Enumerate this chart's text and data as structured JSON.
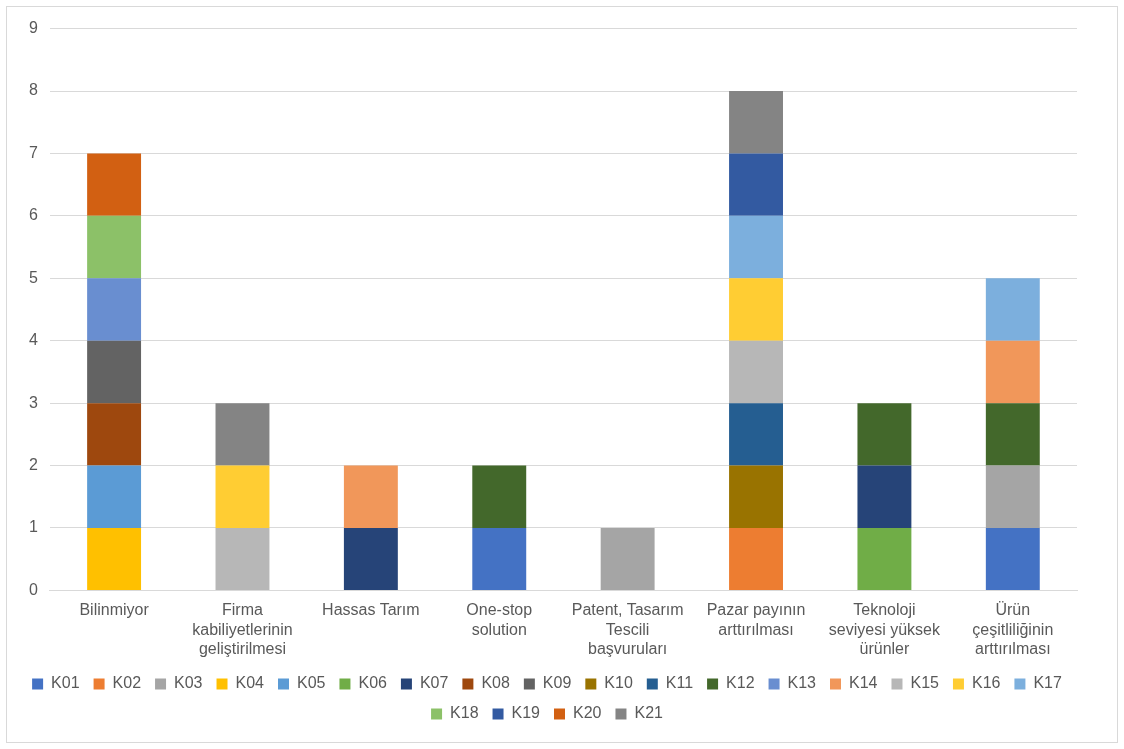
{
  "chart_data": {
    "type": "bar",
    "stacked": true,
    "categories": [
      "Bilinmiyor",
      "Firma kabiliyetlerinin geliştirilmesi",
      "Hassas Tarım",
      "One-stop solution",
      "Patent, Tasarım Tescili başvuruları",
      "Pazar payının arttırılması",
      "Teknoloji seviyesi yüksek ürünler",
      "Ürün çeşitliliğinin arttırılması"
    ],
    "ylim": [
      0,
      9
    ],
    "yticks": [
      0,
      1,
      2,
      3,
      4,
      5,
      6,
      7,
      8,
      9
    ],
    "grid": "y",
    "legend": "bottom",
    "series": [
      {
        "name": "K01",
        "color": "#4472c4",
        "values": [
          null,
          null,
          null,
          1,
          null,
          null,
          null,
          1
        ]
      },
      {
        "name": "K02",
        "color": "#ed7d31",
        "values": [
          null,
          null,
          null,
          null,
          null,
          1,
          null,
          null
        ]
      },
      {
        "name": "K03",
        "color": "#a5a5a5",
        "values": [
          null,
          null,
          null,
          null,
          1,
          null,
          null,
          1
        ]
      },
      {
        "name": "K04",
        "color": "#ffc000",
        "values": [
          1,
          null,
          null,
          null,
          null,
          null,
          null,
          null
        ]
      },
      {
        "name": "K05",
        "color": "#5b9bd5",
        "values": [
          1,
          null,
          null,
          null,
          null,
          null,
          null,
          null
        ]
      },
      {
        "name": "K06",
        "color": "#70ad47",
        "values": [
          null,
          null,
          null,
          null,
          null,
          null,
          1,
          null
        ]
      },
      {
        "name": "K07",
        "color": "#264478",
        "values": [
          null,
          null,
          1,
          null,
          null,
          null,
          1,
          null
        ]
      },
      {
        "name": "K08",
        "color": "#9e480e",
        "values": [
          1,
          null,
          null,
          null,
          null,
          null,
          null,
          null
        ]
      },
      {
        "name": "K09",
        "color": "#636363",
        "values": [
          1,
          null,
          null,
          null,
          null,
          null,
          null,
          null
        ]
      },
      {
        "name": "K10",
        "color": "#997300",
        "values": [
          null,
          null,
          null,
          null,
          null,
          1,
          null,
          null
        ]
      },
      {
        "name": "K11",
        "color": "#255e91",
        "values": [
          null,
          null,
          null,
          null,
          null,
          1,
          null,
          null
        ]
      },
      {
        "name": "K12",
        "color": "#43682b",
        "values": [
          null,
          null,
          null,
          1,
          null,
          null,
          1,
          1
        ]
      },
      {
        "name": "K13",
        "color": "#698ed0",
        "values": [
          1,
          null,
          null,
          null,
          null,
          null,
          null,
          null
        ]
      },
      {
        "name": "K14",
        "color": "#f1975a",
        "values": [
          null,
          null,
          1,
          null,
          null,
          null,
          null,
          1
        ]
      },
      {
        "name": "K15",
        "color": "#b7b7b7",
        "values": [
          null,
          1,
          null,
          null,
          null,
          1,
          null,
          null
        ]
      },
      {
        "name": "K16",
        "color": "#ffcd33",
        "values": [
          null,
          1,
          null,
          null,
          null,
          1,
          null,
          null
        ]
      },
      {
        "name": "K17",
        "color": "#7cafdd",
        "values": [
          null,
          null,
          null,
          null,
          null,
          1,
          null,
          1
        ]
      },
      {
        "name": "K18",
        "color": "#8cc168",
        "values": [
          1,
          null,
          null,
          null,
          null,
          null,
          null,
          null
        ]
      },
      {
        "name": "K19",
        "color": "#335aa1",
        "values": [
          null,
          null,
          null,
          null,
          null,
          1,
          null,
          null
        ]
      },
      {
        "name": "K20",
        "color": "#d26012",
        "values": [
          1,
          null,
          null,
          null,
          null,
          null,
          null,
          null
        ]
      },
      {
        "name": "K21",
        "color": "#848484",
        "values": [
          null,
          1,
          null,
          null,
          null,
          1,
          null,
          null
        ]
      }
    ]
  }
}
